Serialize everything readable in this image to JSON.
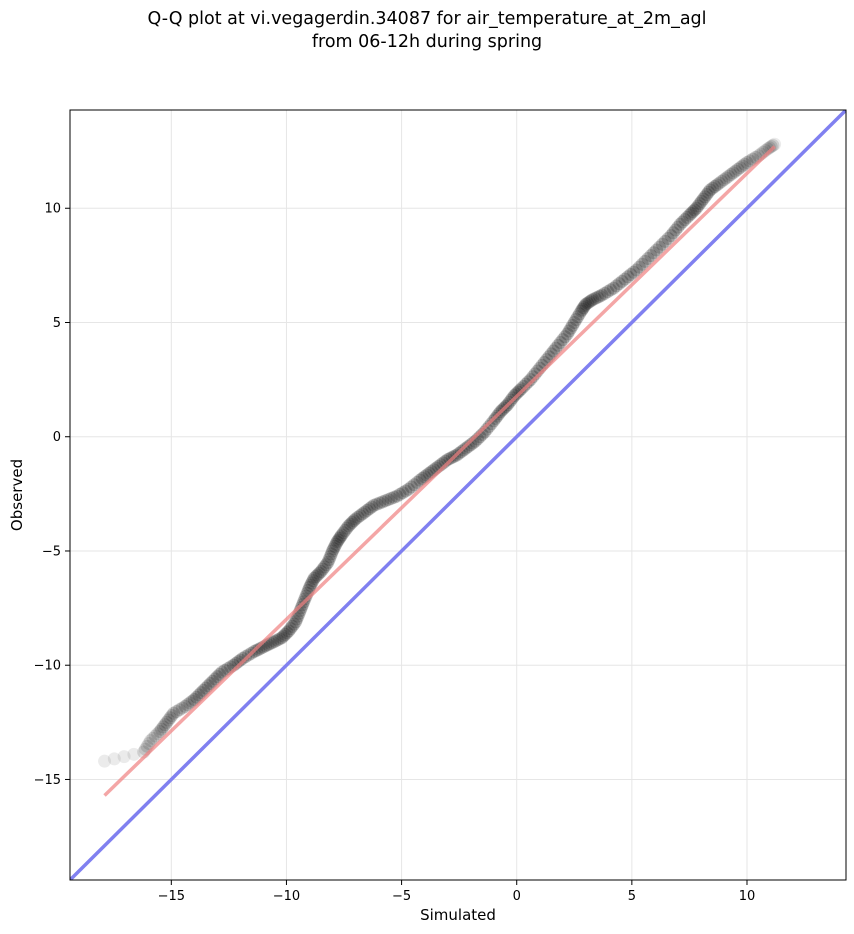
{
  "chart_data": {
    "type": "scatter",
    "title": "Q-Q plot at vi.vegagerdin.34087 for air_temperature_at_2m_agl",
    "subtitle": "from 06-12h during spring",
    "xlabel": "Simulated",
    "ylabel": "Observed",
    "xlim": [
      -19.4,
      14.3
    ],
    "ylim": [
      -19.4,
      14.3
    ],
    "xticks": [
      -15,
      -10,
      -5,
      0,
      5,
      10
    ],
    "yticks": [
      -15,
      -10,
      -5,
      0,
      5,
      10
    ],
    "grid": true,
    "colors": {
      "points": "#000000",
      "fit_line": "#f08080",
      "identity_line": "#8080f0",
      "grid": "#e6e6e6"
    },
    "quantile_points": {
      "x": [
        -17.9,
        -16.2,
        -15.9,
        -15.5,
        -15.2,
        -14.9,
        -14.4,
        -14.0,
        -13.6,
        -13.2,
        -12.8,
        -12.3,
        -11.9,
        -11.4,
        -11.0,
        -10.6,
        -10.2,
        -9.9,
        -9.6,
        -9.4,
        -9.2,
        -9.0,
        -8.8,
        -8.5,
        -8.2,
        -8.0,
        -7.8,
        -7.6,
        -7.3,
        -7.0,
        -6.6,
        -6.2,
        -5.7,
        -5.2,
        -4.7,
        -4.2,
        -3.8,
        -3.4,
        -3.0,
        -2.6,
        -2.2,
        -1.8,
        -1.4,
        -1.0,
        -0.7,
        -0.4,
        -0.1,
        0.2,
        0.6,
        1.0,
        1.4,
        1.8,
        2.2,
        2.5,
        2.8,
        3.0,
        3.3,
        3.7,
        4.2,
        4.7,
        5.2,
        5.7,
        6.2,
        6.7,
        7.1,
        7.5,
        7.8,
        8.1,
        8.4,
        8.8,
        9.2,
        9.6,
        10.0,
        10.5,
        10.9,
        11.2
      ],
      "y": [
        -14.2,
        -13.8,
        -13.3,
        -12.9,
        -12.5,
        -12.1,
        -11.8,
        -11.5,
        -11.1,
        -10.7,
        -10.3,
        -10.0,
        -9.7,
        -9.4,
        -9.2,
        -9.0,
        -8.8,
        -8.5,
        -8.1,
        -7.6,
        -7.1,
        -6.6,
        -6.2,
        -5.9,
        -5.5,
        -5.0,
        -4.6,
        -4.3,
        -3.9,
        -3.6,
        -3.3,
        -3.0,
        -2.8,
        -2.6,
        -2.3,
        -1.9,
        -1.6,
        -1.3,
        -1.0,
        -0.8,
        -0.5,
        -0.2,
        0.2,
        0.7,
        1.1,
        1.4,
        1.8,
        2.1,
        2.5,
        3.0,
        3.5,
        4.0,
        4.5,
        5.0,
        5.5,
        5.8,
        6.0,
        6.2,
        6.5,
        6.9,
        7.3,
        7.8,
        8.3,
        8.8,
        9.3,
        9.7,
        10.0,
        10.4,
        10.8,
        11.1,
        11.4,
        11.7,
        12.0,
        12.3,
        12.6,
        12.8
      ]
    },
    "fit_line": {
      "x": [
        -17.9,
        11.2
      ],
      "y": [
        -15.7,
        12.7
      ]
    },
    "identity_line": {
      "x": [
        -19.4,
        14.3
      ],
      "y": [
        -19.4,
        14.3
      ]
    }
  }
}
